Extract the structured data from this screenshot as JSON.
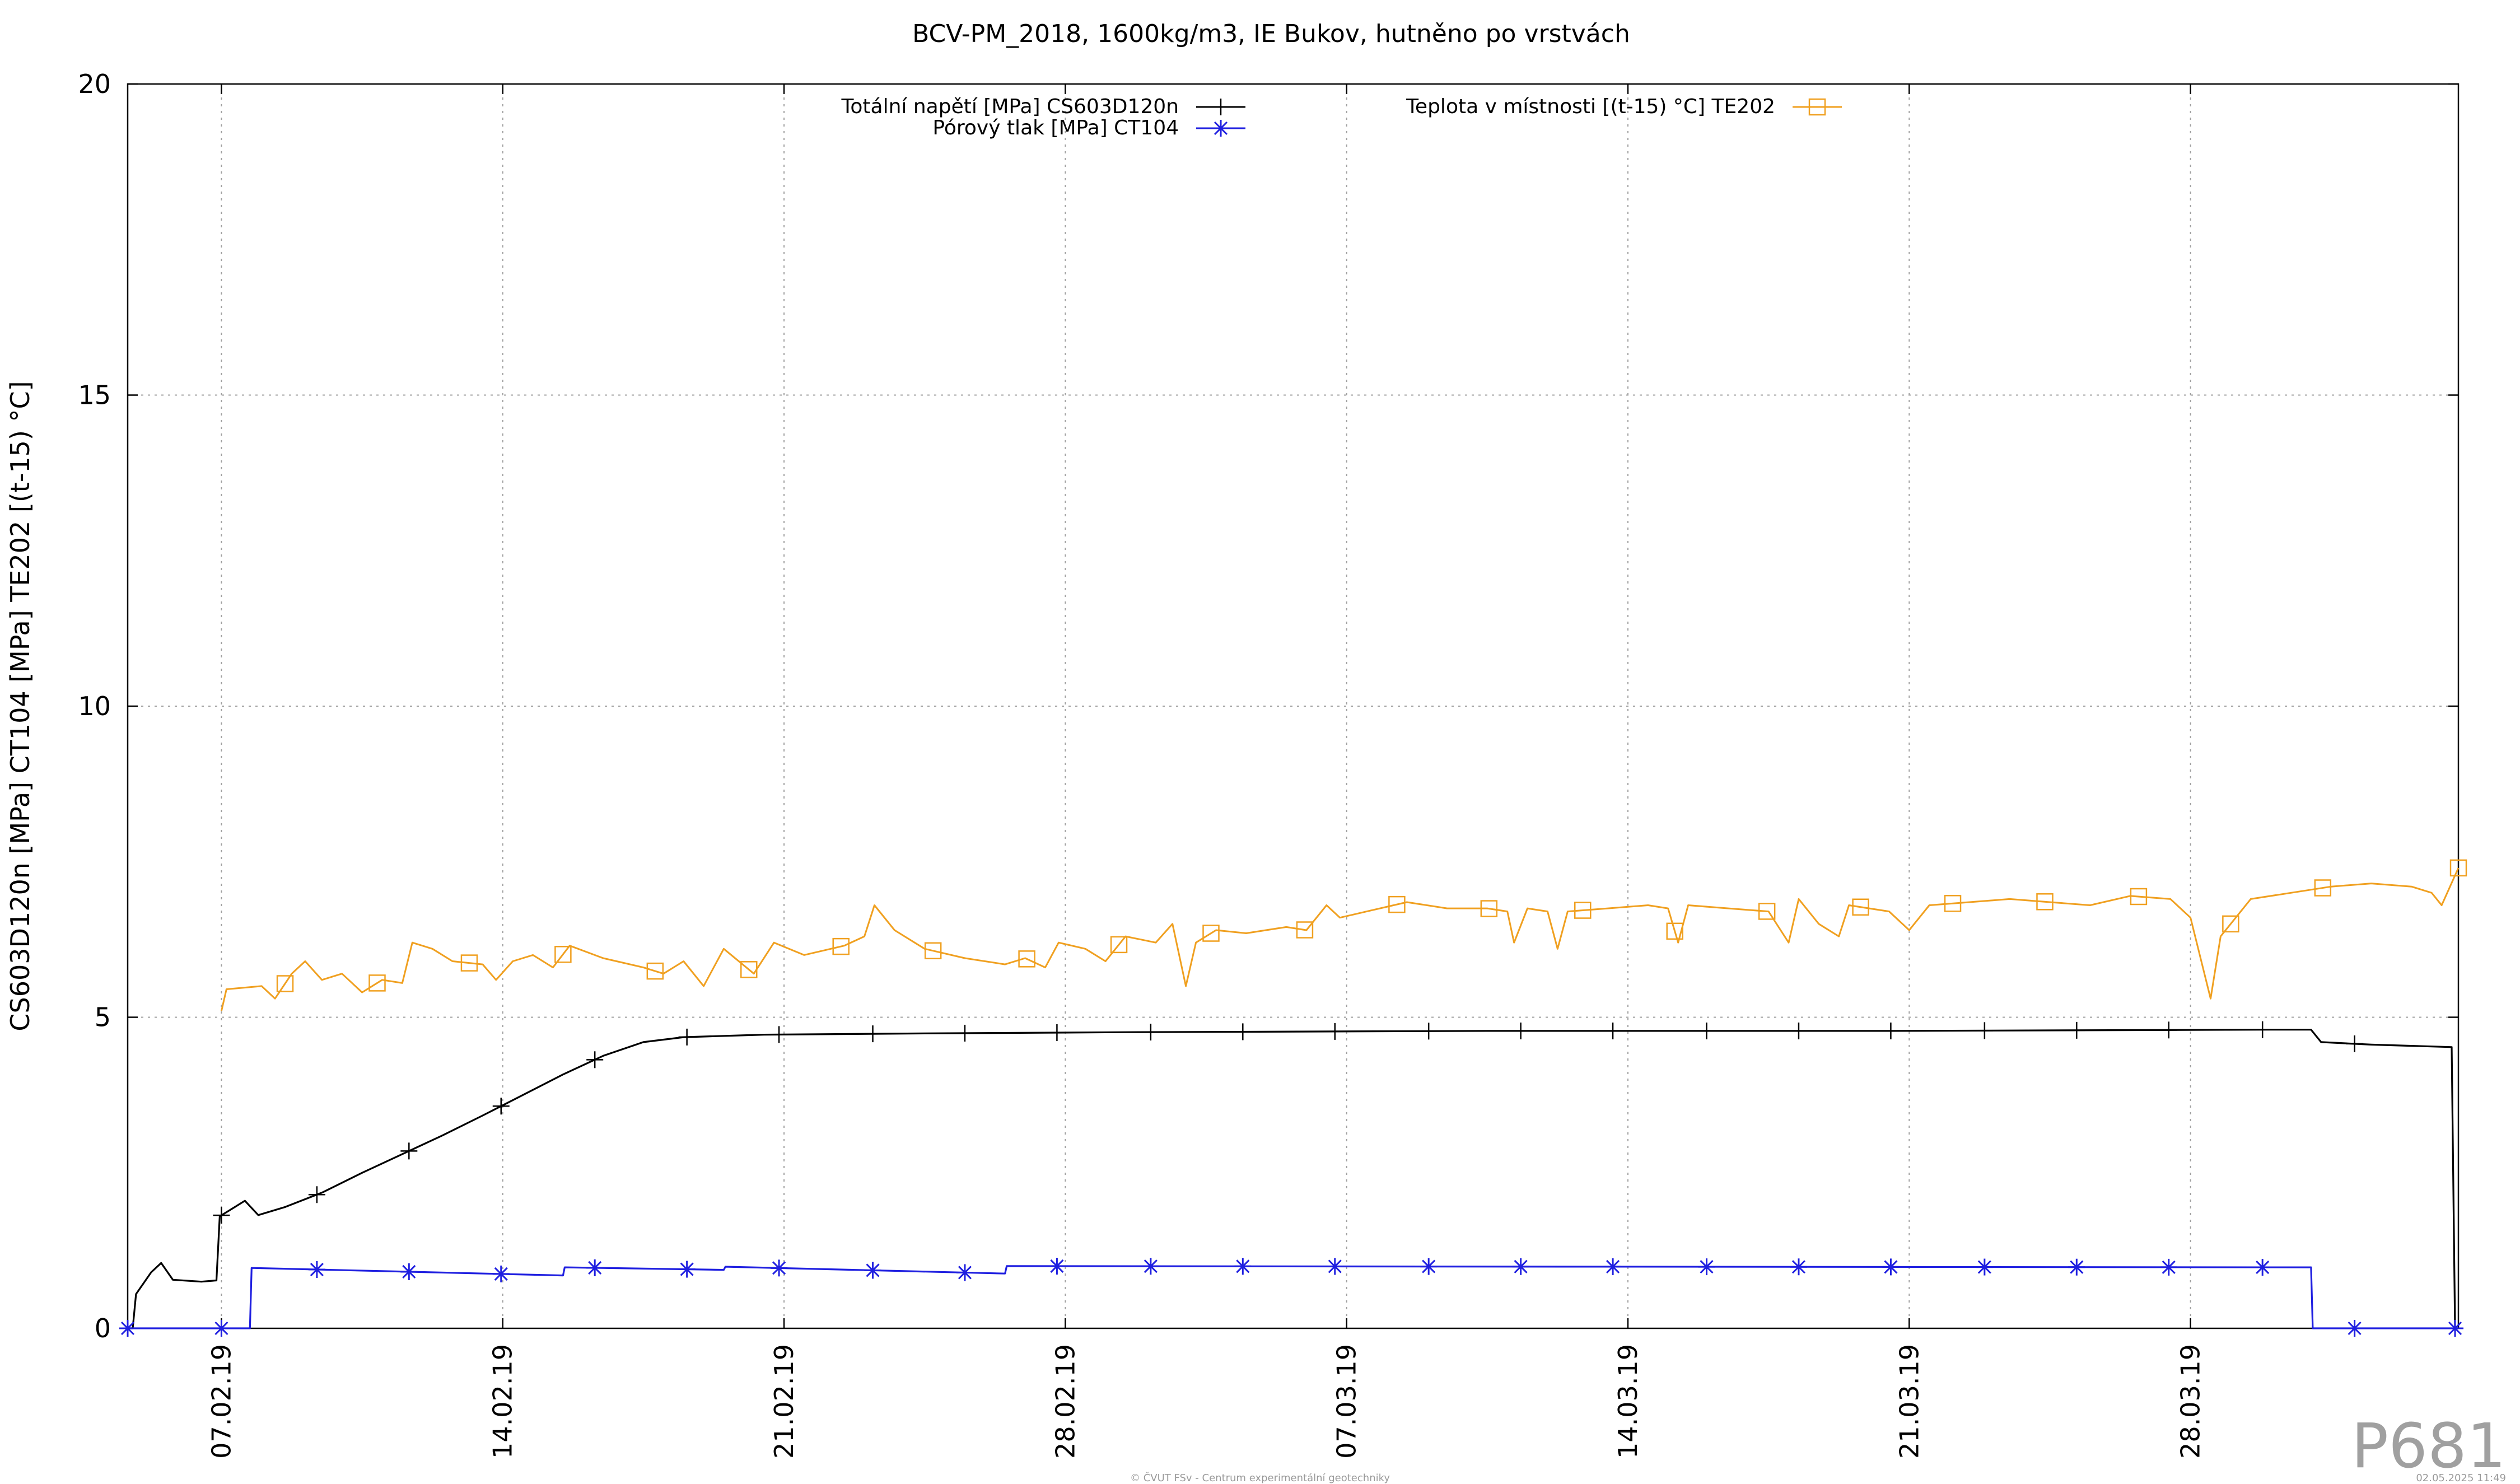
{
  "chart_data": {
    "type": "line",
    "title": "BCV-PM_2018, 1600kg/m3, IE Bukov, hutněno po vrstvách",
    "xlabel": "",
    "ylabel": "CS603D120n [MPa] CT104 [MPa] TE202 [(t-15) °C]",
    "ylim": [
      0,
      20
    ],
    "y_ticks": [
      "0",
      "5",
      "10",
      "15",
      "20"
    ],
    "x_ticks": [
      "07.02.19",
      "14.02.19",
      "21.02.19",
      "28.02.19",
      "07.03.19",
      "14.03.19",
      "21.03.19",
      "28.03.19"
    ],
    "xlim": [
      "2019-02-04T16:00",
      "2019-04-03T16:00"
    ],
    "grid": true,
    "legend_position": "top",
    "series": [
      {
        "name": "Totální napětí [MPa] CS603D120n",
        "color": "#000000",
        "marker": "plus",
        "points": [
          [
            "2019-02-04T16:00",
            0.0
          ],
          [
            "2019-02-04T19:00",
            0.0
          ],
          [
            "2019-02-04T21:00",
            0.55
          ],
          [
            "2019-02-05T06:00",
            0.9
          ],
          [
            "2019-02-05T12:00",
            1.05
          ],
          [
            "2019-02-05T19:00",
            0.78
          ],
          [
            "2019-02-06T12:00",
            0.75
          ],
          [
            "2019-02-06T21:00",
            0.77
          ],
          [
            "2019-02-06T23:00",
            1.8
          ],
          [
            "2019-02-07T08:00",
            1.95
          ],
          [
            "2019-02-07T14:00",
            2.05
          ],
          [
            "2019-02-07T22:00",
            1.82
          ],
          [
            "2019-02-08T14:00",
            1.95
          ],
          [
            "2019-02-09T12:00",
            2.18
          ],
          [
            "2019-02-10T12:00",
            2.5
          ],
          [
            "2019-02-11T12:00",
            2.8
          ],
          [
            "2019-02-12T12:00",
            3.1
          ],
          [
            "2019-02-13T12:00",
            3.42
          ],
          [
            "2019-02-14T12:00",
            3.75
          ],
          [
            "2019-02-15T12:00",
            4.08
          ],
          [
            "2019-02-16T12:00",
            4.38
          ],
          [
            "2019-02-17T12:00",
            4.6
          ],
          [
            "2019-02-18T12:00",
            4.68
          ],
          [
            "2019-02-20T12:00",
            4.72
          ],
          [
            "2019-02-24T12:00",
            4.74
          ],
          [
            "2019-03-01T12:00",
            4.76
          ],
          [
            "2019-03-10T12:00",
            4.78
          ],
          [
            "2019-03-20T12:00",
            4.78
          ],
          [
            "2019-03-30T00:00",
            4.8
          ],
          [
            "2019-03-31T00:00",
            4.8
          ],
          [
            "2019-03-31T06:00",
            4.6
          ],
          [
            "2019-04-01T12:00",
            4.56
          ],
          [
            "2019-04-03T12:00",
            4.52
          ],
          [
            "2019-04-03T14:00",
            0.0
          ],
          [
            "2019-04-03T16:00",
            0.0
          ]
        ],
        "marker_x": [
          "2019-02-04T16:00",
          "2019-02-07T00:00",
          "2019-02-09T09:00",
          "2019-02-11T16:00",
          "2019-02-13T23:00",
          "2019-02-16T07:00",
          "2019-02-18T14:00",
          "2019-02-20T21:00",
          "2019-02-23T05:00",
          "2019-02-25T12:00",
          "2019-02-27T19:00",
          "2019-03-02T03:00",
          "2019-03-04T10:00",
          "2019-03-06T17:00",
          "2019-03-09T01:00",
          "2019-03-11T08:00",
          "2019-03-13T15:00",
          "2019-03-15T23:00",
          "2019-03-18T06:00",
          "2019-03-20T13:00",
          "2019-03-22T21:00",
          "2019-03-25T04:00",
          "2019-03-27T11:00",
          "2019-03-29T19:00",
          "2019-04-01T02:00",
          "2019-04-03T14:00"
        ]
      },
      {
        "name": "Pórový tlak [MPa] CT104",
        "color": "#1f1fe0",
        "marker": "star",
        "points": [
          [
            "2019-02-04T16:00",
            0.0
          ],
          [
            "2019-02-07T17:00",
            0.0
          ],
          [
            "2019-02-07T18:00",
            0.97
          ],
          [
            "2019-02-15T12:00",
            0.85
          ],
          [
            "2019-02-15T13:00",
            0.98
          ],
          [
            "2019-02-19T12:00",
            0.94
          ],
          [
            "2019-02-19T13:00",
            0.99
          ],
          [
            "2019-02-26T12:00",
            0.88
          ],
          [
            "2019-02-26T13:00",
            1.0
          ],
          [
            "2019-03-31T00:00",
            0.98
          ],
          [
            "2019-03-31T01:00",
            0.0
          ],
          [
            "2019-04-03T16:00",
            0.0
          ]
        ],
        "marker_x": [
          "2019-02-04T16:00",
          "2019-02-07T00:00",
          "2019-02-09T09:00",
          "2019-02-11T16:00",
          "2019-02-13T23:00",
          "2019-02-16T07:00",
          "2019-02-18T14:00",
          "2019-02-20T21:00",
          "2019-02-23T05:00",
          "2019-02-25T12:00",
          "2019-02-27T19:00",
          "2019-03-02T03:00",
          "2019-03-04T10:00",
          "2019-03-06T17:00",
          "2019-03-09T01:00",
          "2019-03-11T08:00",
          "2019-03-13T15:00",
          "2019-03-15T23:00",
          "2019-03-18T06:00",
          "2019-03-20T13:00",
          "2019-03-22T21:00",
          "2019-03-25T04:00",
          "2019-03-27T11:00",
          "2019-03-29T19:00",
          "2019-04-01T02:00",
          "2019-04-03T14:00"
        ]
      },
      {
        "name": "Teplota v místnosti [(t-15) °C] TE202",
        "color": "#f0a020",
        "marker": "square",
        "points": [
          [
            "2019-02-07T00:00",
            5.1
          ],
          [
            "2019-02-07T03:00",
            5.45
          ],
          [
            "2019-02-08T00:00",
            5.5
          ],
          [
            "2019-02-08T08:00",
            5.3
          ],
          [
            "2019-02-08T18:00",
            5.7
          ],
          [
            "2019-02-09T02:00",
            5.9
          ],
          [
            "2019-02-09T12:00",
            5.6
          ],
          [
            "2019-02-10T00:00",
            5.7
          ],
          [
            "2019-02-10T12:00",
            5.4
          ],
          [
            "2019-02-11T00:00",
            5.6
          ],
          [
            "2019-02-11T12:00",
            5.55
          ],
          [
            "2019-02-11T18:00",
            6.2
          ],
          [
            "2019-02-12T06:00",
            6.1
          ],
          [
            "2019-02-12T18:00",
            5.9
          ],
          [
            "2019-02-13T12:00",
            5.85
          ],
          [
            "2019-02-13T20:00",
            5.6
          ],
          [
            "2019-02-14T06:00",
            5.9
          ],
          [
            "2019-02-14T18:00",
            6.0
          ],
          [
            "2019-02-15T06:00",
            5.8
          ],
          [
            "2019-02-15T16:00",
            6.15
          ],
          [
            "2019-02-16T12:00",
            5.95
          ],
          [
            "2019-02-17T12:00",
            5.8
          ],
          [
            "2019-02-18T00:00",
            5.7
          ],
          [
            "2019-02-18T12:00",
            5.9
          ],
          [
            "2019-02-19T00:00",
            5.5
          ],
          [
            "2019-02-19T12:00",
            6.1
          ],
          [
            "2019-02-20T06:00",
            5.7
          ],
          [
            "2019-02-20T18:00",
            6.2
          ],
          [
            "2019-02-21T12:00",
            6.0
          ],
          [
            "2019-02-22T12:00",
            6.15
          ],
          [
            "2019-02-23T00:00",
            6.3
          ],
          [
            "2019-02-23T06:00",
            6.8
          ],
          [
            "2019-02-23T18:00",
            6.4
          ],
          [
            "2019-02-24T12:00",
            6.1
          ],
          [
            "2019-02-25T12:00",
            5.95
          ],
          [
            "2019-02-26T12:00",
            5.85
          ],
          [
            "2019-02-27T00:00",
            5.95
          ],
          [
            "2019-02-27T12:00",
            5.8
          ],
          [
            "2019-02-27T20:00",
            6.2
          ],
          [
            "2019-02-28T12:00",
            6.1
          ],
          [
            "2019-03-01T00:00",
            5.9
          ],
          [
            "2019-03-01T12:00",
            6.3
          ],
          [
            "2019-03-02T06:00",
            6.2
          ],
          [
            "2019-03-02T16:00",
            6.5
          ],
          [
            "2019-03-03T00:00",
            5.5
          ],
          [
            "2019-03-03T06:00",
            6.2
          ],
          [
            "2019-03-03T18:00",
            6.4
          ],
          [
            "2019-03-04T12:00",
            6.35
          ],
          [
            "2019-03-05T12:00",
            6.45
          ],
          [
            "2019-03-06T00:00",
            6.4
          ],
          [
            "2019-03-06T12:00",
            6.8
          ],
          [
            "2019-03-06T20:00",
            6.6
          ],
          [
            "2019-03-07T12:00",
            6.7
          ],
          [
            "2019-03-08T12:00",
            6.85
          ],
          [
            "2019-03-09T12:00",
            6.75
          ],
          [
            "2019-03-10T12:00",
            6.75
          ],
          [
            "2019-03-11T00:00",
            6.7
          ],
          [
            "2019-03-11T04:00",
            6.2
          ],
          [
            "2019-03-11T12:00",
            6.75
          ],
          [
            "2019-03-12T00:00",
            6.7
          ],
          [
            "2019-03-12T06:00",
            6.1
          ],
          [
            "2019-03-12T12:00",
            6.7
          ],
          [
            "2019-03-13T12:00",
            6.75
          ],
          [
            "2019-03-14T12:00",
            6.8
          ],
          [
            "2019-03-15T00:00",
            6.75
          ],
          [
            "2019-03-15T06:00",
            6.2
          ],
          [
            "2019-03-15T12:00",
            6.8
          ],
          [
            "2019-03-16T12:00",
            6.75
          ],
          [
            "2019-03-17T12:00",
            6.7
          ],
          [
            "2019-03-18T00:00",
            6.2
          ],
          [
            "2019-03-18T06:00",
            6.9
          ],
          [
            "2019-03-18T18:00",
            6.5
          ],
          [
            "2019-03-19T06:00",
            6.3
          ],
          [
            "2019-03-19T12:00",
            6.8
          ],
          [
            "2019-03-20T12:00",
            6.7
          ],
          [
            "2019-03-21T00:00",
            6.4
          ],
          [
            "2019-03-21T12:00",
            6.8
          ],
          [
            "2019-03-22T12:00",
            6.85
          ],
          [
            "2019-03-23T12:00",
            6.9
          ],
          [
            "2019-03-24T12:00",
            6.85
          ],
          [
            "2019-03-25T12:00",
            6.8
          ],
          [
            "2019-03-26T12:00",
            6.95
          ],
          [
            "2019-03-27T12:00",
            6.9
          ],
          [
            "2019-03-28T00:00",
            6.6
          ],
          [
            "2019-03-28T12:00",
            5.3
          ],
          [
            "2019-03-28T18:00",
            6.3
          ],
          [
            "2019-03-29T12:00",
            6.9
          ],
          [
            "2019-03-30T12:00",
            7.0
          ],
          [
            "2019-03-31T12:00",
            7.1
          ],
          [
            "2019-04-01T12:00",
            7.15
          ],
          [
            "2019-04-02T12:00",
            7.1
          ],
          [
            "2019-04-03T00:00",
            7.0
          ],
          [
            "2019-04-03T06:00",
            6.8
          ],
          [
            "2019-04-03T16:00",
            7.4
          ]
        ],
        "marker_x": [
          "2019-02-08T14:00",
          "2019-02-10T21:00",
          "2019-02-13T04:00",
          "2019-02-15T12:00",
          "2019-02-17T19:00",
          "2019-02-20T03:00",
          "2019-02-22T10:00",
          "2019-02-24T17:00",
          "2019-02-27T01:00",
          "2019-03-01T08:00",
          "2019-03-03T15:00",
          "2019-03-05T23:00",
          "2019-03-08T06:00",
          "2019-03-10T13:00",
          "2019-03-12T21:00",
          "2019-03-15T04:00",
          "2019-03-17T11:00",
          "2019-03-19T19:00",
          "2019-03-22T02:00",
          "2019-03-24T09:00",
          "2019-03-26T17:00",
          "2019-03-29T00:00",
          "2019-03-31T07:00",
          "2019-04-03T16:00"
        ]
      }
    ]
  },
  "plot_code": "P681",
  "footer_center": "© ČVUT FSv - Centrum experimentální geotechniky",
  "footer_right": "02.05.2025 11:49"
}
